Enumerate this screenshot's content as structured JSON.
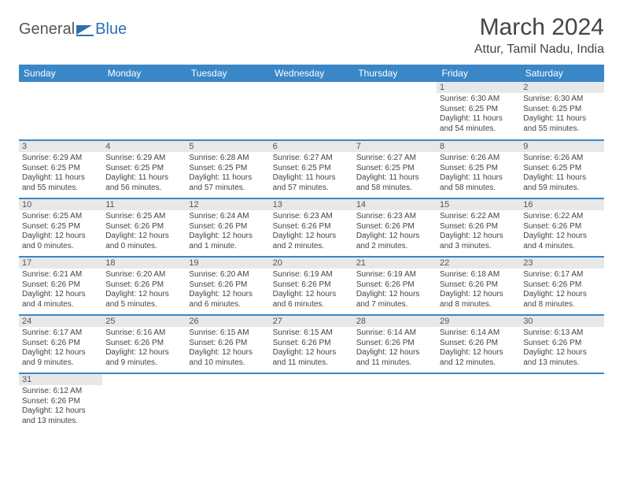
{
  "logo": {
    "part1": "General",
    "part2": "Blue"
  },
  "title": "March 2024",
  "location": "Attur, Tamil Nadu, India",
  "colors": {
    "header_bg": "#3a87c8",
    "header_fg": "#ffffff",
    "text": "#444444",
    "daynum_bg": "#e8e8e8"
  },
  "weekdays": [
    "Sunday",
    "Monday",
    "Tuesday",
    "Wednesday",
    "Thursday",
    "Friday",
    "Saturday"
  ],
  "weeks": [
    [
      null,
      null,
      null,
      null,
      null,
      {
        "n": "1",
        "sr": "Sunrise: 6:30 AM",
        "ss": "Sunset: 6:25 PM",
        "d1": "Daylight: 11 hours",
        "d2": "and 54 minutes."
      },
      {
        "n": "2",
        "sr": "Sunrise: 6:30 AM",
        "ss": "Sunset: 6:25 PM",
        "d1": "Daylight: 11 hours",
        "d2": "and 55 minutes."
      }
    ],
    [
      {
        "n": "3",
        "sr": "Sunrise: 6:29 AM",
        "ss": "Sunset: 6:25 PM",
        "d1": "Daylight: 11 hours",
        "d2": "and 55 minutes."
      },
      {
        "n": "4",
        "sr": "Sunrise: 6:29 AM",
        "ss": "Sunset: 6:25 PM",
        "d1": "Daylight: 11 hours",
        "d2": "and 56 minutes."
      },
      {
        "n": "5",
        "sr": "Sunrise: 6:28 AM",
        "ss": "Sunset: 6:25 PM",
        "d1": "Daylight: 11 hours",
        "d2": "and 57 minutes."
      },
      {
        "n": "6",
        "sr": "Sunrise: 6:27 AM",
        "ss": "Sunset: 6:25 PM",
        "d1": "Daylight: 11 hours",
        "d2": "and 57 minutes."
      },
      {
        "n": "7",
        "sr": "Sunrise: 6:27 AM",
        "ss": "Sunset: 6:25 PM",
        "d1": "Daylight: 11 hours",
        "d2": "and 58 minutes."
      },
      {
        "n": "8",
        "sr": "Sunrise: 6:26 AM",
        "ss": "Sunset: 6:25 PM",
        "d1": "Daylight: 11 hours",
        "d2": "and 58 minutes."
      },
      {
        "n": "9",
        "sr": "Sunrise: 6:26 AM",
        "ss": "Sunset: 6:25 PM",
        "d1": "Daylight: 11 hours",
        "d2": "and 59 minutes."
      }
    ],
    [
      {
        "n": "10",
        "sr": "Sunrise: 6:25 AM",
        "ss": "Sunset: 6:25 PM",
        "d1": "Daylight: 12 hours",
        "d2": "and 0 minutes."
      },
      {
        "n": "11",
        "sr": "Sunrise: 6:25 AM",
        "ss": "Sunset: 6:26 PM",
        "d1": "Daylight: 12 hours",
        "d2": "and 0 minutes."
      },
      {
        "n": "12",
        "sr": "Sunrise: 6:24 AM",
        "ss": "Sunset: 6:26 PM",
        "d1": "Daylight: 12 hours",
        "d2": "and 1 minute."
      },
      {
        "n": "13",
        "sr": "Sunrise: 6:23 AM",
        "ss": "Sunset: 6:26 PM",
        "d1": "Daylight: 12 hours",
        "d2": "and 2 minutes."
      },
      {
        "n": "14",
        "sr": "Sunrise: 6:23 AM",
        "ss": "Sunset: 6:26 PM",
        "d1": "Daylight: 12 hours",
        "d2": "and 2 minutes."
      },
      {
        "n": "15",
        "sr": "Sunrise: 6:22 AM",
        "ss": "Sunset: 6:26 PM",
        "d1": "Daylight: 12 hours",
        "d2": "and 3 minutes."
      },
      {
        "n": "16",
        "sr": "Sunrise: 6:22 AM",
        "ss": "Sunset: 6:26 PM",
        "d1": "Daylight: 12 hours",
        "d2": "and 4 minutes."
      }
    ],
    [
      {
        "n": "17",
        "sr": "Sunrise: 6:21 AM",
        "ss": "Sunset: 6:26 PM",
        "d1": "Daylight: 12 hours",
        "d2": "and 4 minutes."
      },
      {
        "n": "18",
        "sr": "Sunrise: 6:20 AM",
        "ss": "Sunset: 6:26 PM",
        "d1": "Daylight: 12 hours",
        "d2": "and 5 minutes."
      },
      {
        "n": "19",
        "sr": "Sunrise: 6:20 AM",
        "ss": "Sunset: 6:26 PM",
        "d1": "Daylight: 12 hours",
        "d2": "and 6 minutes."
      },
      {
        "n": "20",
        "sr": "Sunrise: 6:19 AM",
        "ss": "Sunset: 6:26 PM",
        "d1": "Daylight: 12 hours",
        "d2": "and 6 minutes."
      },
      {
        "n": "21",
        "sr": "Sunrise: 6:19 AM",
        "ss": "Sunset: 6:26 PM",
        "d1": "Daylight: 12 hours",
        "d2": "and 7 minutes."
      },
      {
        "n": "22",
        "sr": "Sunrise: 6:18 AM",
        "ss": "Sunset: 6:26 PM",
        "d1": "Daylight: 12 hours",
        "d2": "and 8 minutes."
      },
      {
        "n": "23",
        "sr": "Sunrise: 6:17 AM",
        "ss": "Sunset: 6:26 PM",
        "d1": "Daylight: 12 hours",
        "d2": "and 8 minutes."
      }
    ],
    [
      {
        "n": "24",
        "sr": "Sunrise: 6:17 AM",
        "ss": "Sunset: 6:26 PM",
        "d1": "Daylight: 12 hours",
        "d2": "and 9 minutes."
      },
      {
        "n": "25",
        "sr": "Sunrise: 6:16 AM",
        "ss": "Sunset: 6:26 PM",
        "d1": "Daylight: 12 hours",
        "d2": "and 9 minutes."
      },
      {
        "n": "26",
        "sr": "Sunrise: 6:15 AM",
        "ss": "Sunset: 6:26 PM",
        "d1": "Daylight: 12 hours",
        "d2": "and 10 minutes."
      },
      {
        "n": "27",
        "sr": "Sunrise: 6:15 AM",
        "ss": "Sunset: 6:26 PM",
        "d1": "Daylight: 12 hours",
        "d2": "and 11 minutes."
      },
      {
        "n": "28",
        "sr": "Sunrise: 6:14 AM",
        "ss": "Sunset: 6:26 PM",
        "d1": "Daylight: 12 hours",
        "d2": "and 11 minutes."
      },
      {
        "n": "29",
        "sr": "Sunrise: 6:14 AM",
        "ss": "Sunset: 6:26 PM",
        "d1": "Daylight: 12 hours",
        "d2": "and 12 minutes."
      },
      {
        "n": "30",
        "sr": "Sunrise: 6:13 AM",
        "ss": "Sunset: 6:26 PM",
        "d1": "Daylight: 12 hours",
        "d2": "and 13 minutes."
      }
    ],
    [
      {
        "n": "31",
        "sr": "Sunrise: 6:12 AM",
        "ss": "Sunset: 6:26 PM",
        "d1": "Daylight: 12 hours",
        "d2": "and 13 minutes."
      },
      null,
      null,
      null,
      null,
      null,
      null
    ]
  ]
}
